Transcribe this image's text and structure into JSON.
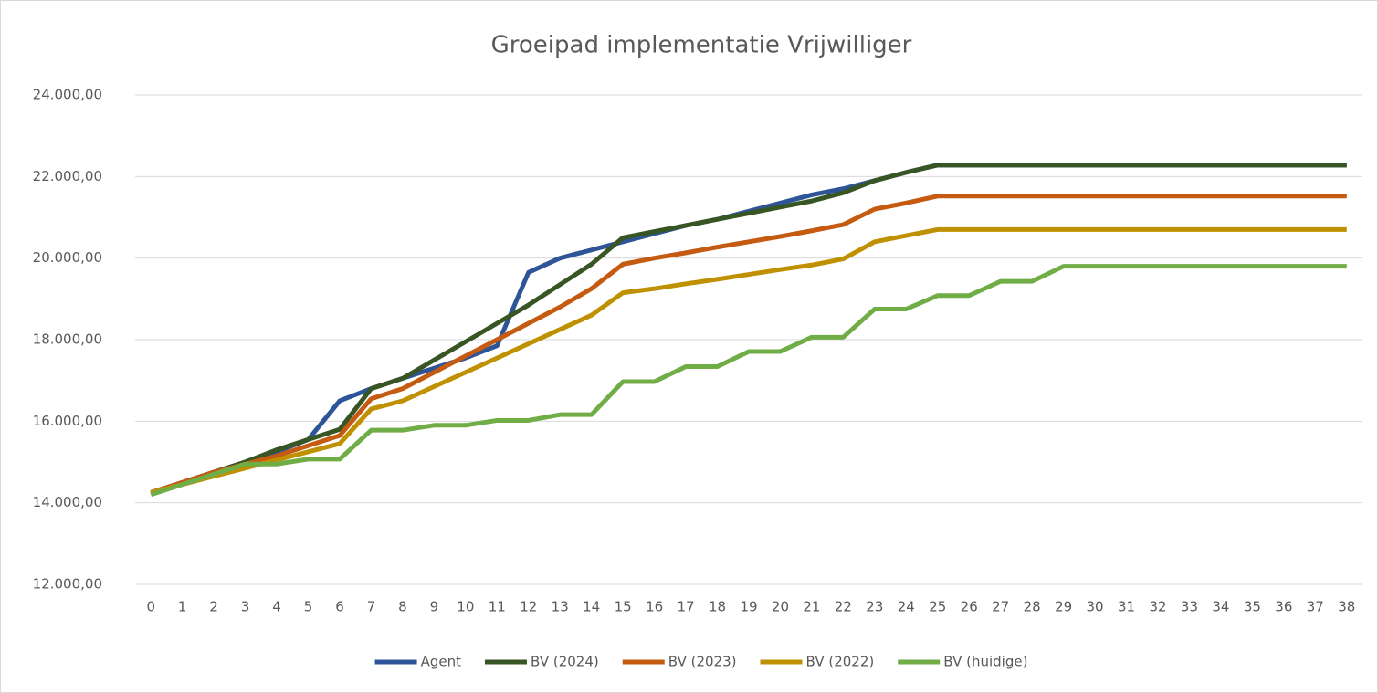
{
  "chart_data": {
    "type": "line",
    "title": "Groeipad implementatie Vrijwilliger",
    "categories": [
      0,
      1,
      2,
      3,
      4,
      5,
      6,
      7,
      8,
      9,
      10,
      11,
      12,
      13,
      14,
      15,
      16,
      17,
      18,
      19,
      20,
      21,
      22,
      23,
      24,
      25,
      26,
      27,
      28,
      29,
      30,
      31,
      32,
      33,
      34,
      35,
      36,
      37,
      38
    ],
    "ylim": [
      12000,
      24000
    ],
    "yticks": [
      {
        "value": 12000,
        "label": "12.000,00"
      },
      {
        "value": 14000,
        "label": "14.000,00"
      },
      {
        "value": 16000,
        "label": "16.000,00"
      },
      {
        "value": 18000,
        "label": "18.000,00"
      },
      {
        "value": 20000,
        "label": "20.000,00"
      },
      {
        "value": 22000,
        "label": "22.000,00"
      },
      {
        "value": 24000,
        "label": "24.000,00"
      }
    ],
    "grid": true,
    "legend": "bottom",
    "series": [
      {
        "name": "Agent",
        "color": "#2e5597",
        "values": [
          14250,
          14500,
          14750,
          15000,
          15250,
          15550,
          16500,
          16800,
          17050,
          17300,
          17550,
          17850,
          19650,
          20000,
          20200,
          20400,
          20600,
          20800,
          20950,
          21150,
          21350,
          21550,
          21700,
          21900,
          22100,
          22280,
          22280,
          22280,
          22280,
          22280,
          22280,
          22280,
          22280,
          22280,
          22280,
          22280,
          22280,
          22280,
          22280
        ]
      },
      {
        "name": "BV (2024)",
        "color": "#375623",
        "values": [
          14250,
          14500,
          14750,
          15000,
          15300,
          15550,
          15800,
          16800,
          17050,
          17500,
          17950,
          18400,
          18850,
          19350,
          19850,
          20500,
          20650,
          20800,
          20950,
          21100,
          21250,
          21400,
          21600,
          21900,
          22100,
          22280,
          22280,
          22280,
          22280,
          22280,
          22280,
          22280,
          22280,
          22280,
          22280,
          22280,
          22280,
          22280,
          22280
        ]
      },
      {
        "name": "BV (2023)",
        "color": "#c55a11",
        "values": [
          14250,
          14500,
          14750,
          14950,
          15150,
          15400,
          15650,
          16550,
          16800,
          17200,
          17600,
          18000,
          18400,
          18800,
          19250,
          19850,
          20000,
          20130,
          20270,
          20400,
          20530,
          20670,
          20820,
          21200,
          21350,
          21520,
          21520,
          21520,
          21520,
          21520,
          21520,
          21520,
          21520,
          21520,
          21520,
          21520,
          21520,
          21520,
          21520
        ]
      },
      {
        "name": "BV (2022)",
        "color": "#bf9000",
        "values": [
          14250,
          14450,
          14650,
          14850,
          15050,
          15250,
          15450,
          16300,
          16500,
          16850,
          17200,
          17550,
          17900,
          18250,
          18600,
          19150,
          19250,
          19370,
          19480,
          19600,
          19720,
          19830,
          19980,
          20400,
          20550,
          20700,
          20700,
          20700,
          20700,
          20700,
          20700,
          20700,
          20700,
          20700,
          20700,
          20700,
          20700,
          20700,
          20700
        ]
      },
      {
        "name": "BV (huidige)",
        "color": "#70ad47",
        "values": [
          14200,
          14450,
          14700,
          14950,
          14950,
          15070,
          15070,
          15780,
          15780,
          15900,
          15900,
          16020,
          16020,
          16160,
          16160,
          16970,
          16970,
          17340,
          17340,
          17710,
          17710,
          18060,
          18060,
          18750,
          18750,
          19080,
          19080,
          19430,
          19430,
          19800,
          19800,
          19800,
          19800,
          19800,
          19800,
          19800,
          19800,
          19800,
          19800
        ]
      }
    ]
  }
}
